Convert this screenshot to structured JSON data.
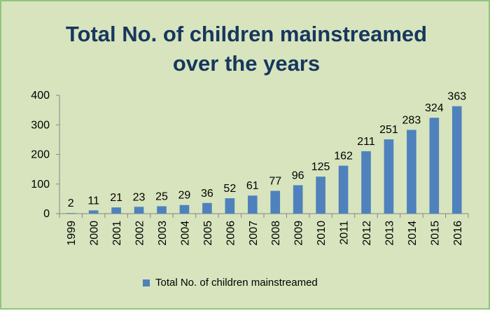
{
  "chart_data": {
    "type": "bar",
    "title_line1": "Total No. of children mainstreamed",
    "title_line2": "over the years",
    "categories": [
      "1999",
      "2000",
      "2001",
      "2002",
      "2003",
      "2004",
      "2005",
      "2006",
      "2007",
      "2008",
      "2009",
      "2010",
      "2011",
      "2012",
      "2013",
      "2014",
      "2015",
      "2016"
    ],
    "series": [
      {
        "name": "Total No. of children mainstreamed",
        "values": [
          2,
          11,
          21,
          23,
          25,
          29,
          36,
          52,
          61,
          77,
          96,
          125,
          162,
          211,
          251,
          283,
          324,
          363
        ]
      }
    ],
    "y_ticks": [
      "0",
      "100",
      "200",
      "300",
      "400"
    ],
    "ylim": [
      0,
      400
    ],
    "xlabel": "",
    "ylabel": "",
    "legend_position": "bottom",
    "grid": false,
    "colors": {
      "bar": "#4f81bd",
      "background": "#d7e4bd",
      "border": "#93c47d",
      "title": "#17375e"
    }
  }
}
